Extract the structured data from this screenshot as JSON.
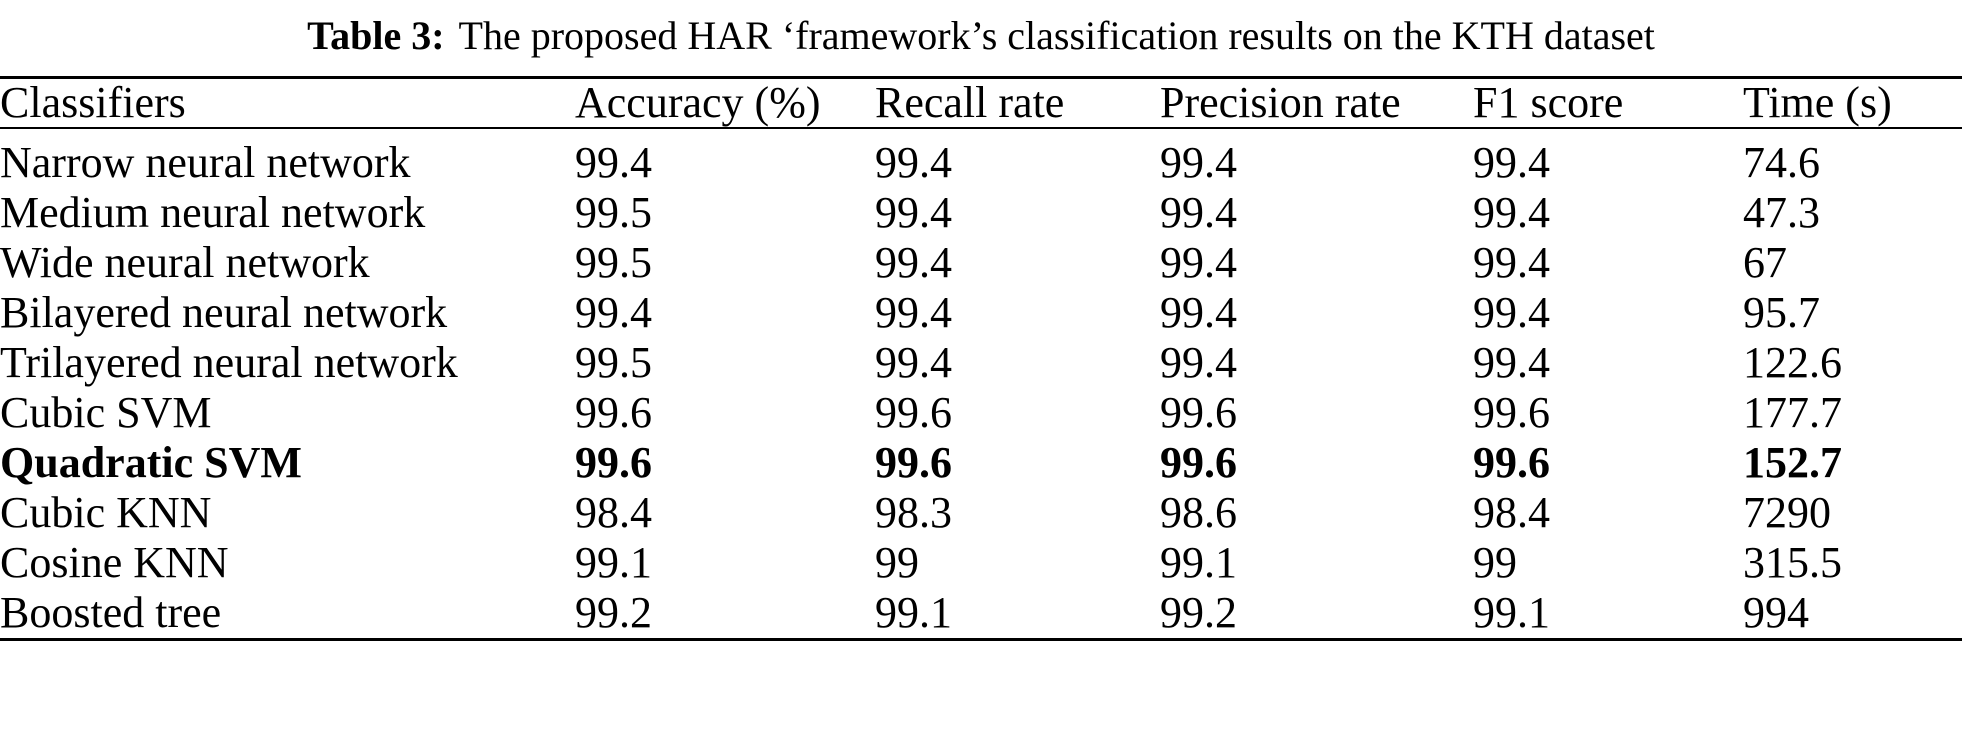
{
  "caption": {
    "label": "Table 3:",
    "text": "The proposed HAR ‘framework’s classification results on the KTH dataset"
  },
  "table": {
    "columns": [
      "Classifiers",
      "Accuracy (%)",
      "Recall rate",
      "Precision rate",
      "F1 score",
      "Time (s)"
    ],
    "rows": [
      {
        "classifier": "Narrow neural network",
        "accuracy": "99.4",
        "recall": "99.4",
        "precision": "99.4",
        "f1": "99.4",
        "time": "74.6",
        "bold": false
      },
      {
        "classifier": "Medium neural network",
        "accuracy": "99.5",
        "recall": "99.4",
        "precision": "99.4",
        "f1": "99.4",
        "time": "47.3",
        "bold": false
      },
      {
        "classifier": "Wide neural network",
        "accuracy": "99.5",
        "recall": "99.4",
        "precision": "99.4",
        "f1": "99.4",
        "time": "67",
        "bold": false
      },
      {
        "classifier": "Bilayered neural network",
        "accuracy": "99.4",
        "recall": "99.4",
        "precision": "99.4",
        "f1": "99.4",
        "time": "95.7",
        "bold": false
      },
      {
        "classifier": "Trilayered neural network",
        "accuracy": "99.5",
        "recall": "99.4",
        "precision": "99.4",
        "f1": "99.4",
        "time": "122.6",
        "bold": false
      },
      {
        "classifier": "Cubic SVM",
        "accuracy": "99.6",
        "recall": "99.6",
        "precision": "99.6",
        "f1": "99.6",
        "time": "177.7",
        "bold": false
      },
      {
        "classifier": "Quadratic SVM",
        "accuracy": "99.6",
        "recall": "99.6",
        "precision": "99.6",
        "f1": "99.6",
        "time": "152.7",
        "bold": true
      },
      {
        "classifier": "Cubic KNN",
        "accuracy": "98.4",
        "recall": "98.3",
        "precision": "98.6",
        "f1": "98.4",
        "time": "7290",
        "bold": false
      },
      {
        "classifier": "Cosine KNN",
        "accuracy": "99.1",
        "recall": "99",
        "precision": "99.1",
        "f1": "99",
        "time": "315.5",
        "bold": false
      },
      {
        "classifier": "Boosted tree",
        "accuracy": "99.2",
        "recall": "99.1",
        "precision": "99.2",
        "f1": "99.1",
        "time": "994",
        "bold": false
      }
    ]
  },
  "colors": {
    "text": "#000000",
    "background": "#ffffff",
    "rule": "#000000"
  }
}
